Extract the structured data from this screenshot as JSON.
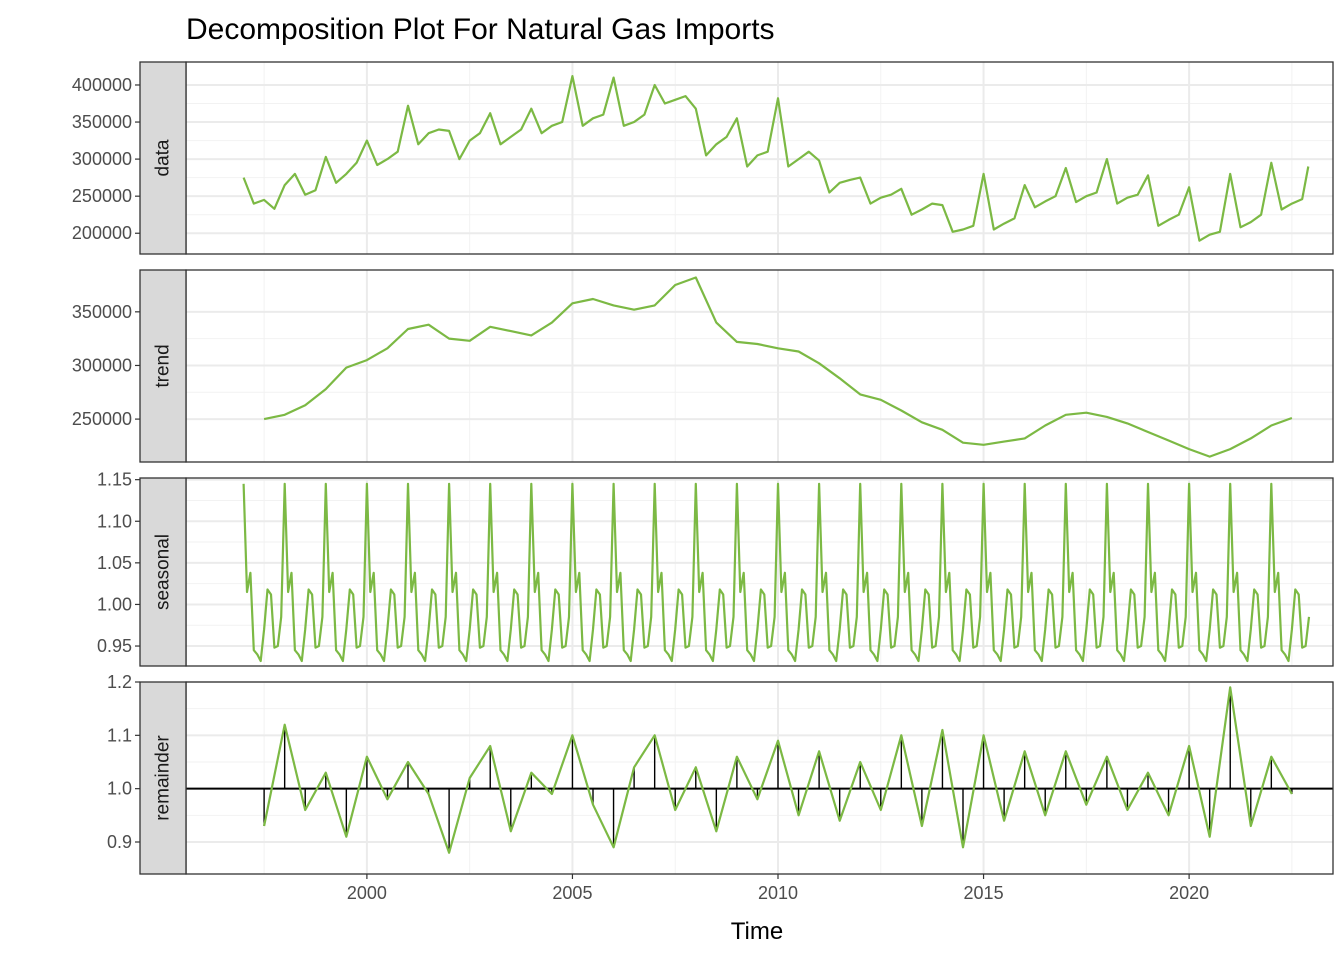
{
  "chart_data": {
    "type": "line",
    "title": "Decomposition Plot For Natural Gas Imports",
    "xlabel": "Time",
    "x_ticks": [
      2000,
      2005,
      2010,
      2015,
      2020
    ],
    "xlim": [
      1995.6,
      2023.5
    ],
    "line_color": "#7cb944",
    "grid": true,
    "panels": [
      {
        "strip": "data",
        "ylim": [
          172000,
          431000
        ],
        "y_ticks": [
          200000,
          250000,
          300000,
          350000,
          400000
        ],
        "tick_labels": [
          "200000",
          "250000",
          "300000",
          "350000",
          "400000"
        ],
        "x": [
          1997.0,
          1997.25,
          1997.5,
          1997.75,
          1998.0,
          1998.25,
          1998.5,
          1998.75,
          1999.0,
          1999.25,
          1999.5,
          1999.75,
          2000.0,
          2000.25,
          2000.5,
          2000.75,
          2001.0,
          2001.25,
          2001.5,
          2001.75,
          2002.0,
          2002.25,
          2002.5,
          2002.75,
          2003.0,
          2003.25,
          2003.5,
          2003.75,
          2004.0,
          2004.25,
          2004.5,
          2004.75,
          2005.0,
          2005.25,
          2005.5,
          2005.75,
          2006.0,
          2006.25,
          2006.5,
          2006.75,
          2007.0,
          2007.25,
          2007.5,
          2007.75,
          2008.0,
          2008.25,
          2008.5,
          2008.75,
          2009.0,
          2009.25,
          2009.5,
          2009.75,
          2010.0,
          2010.25,
          2010.5,
          2010.75,
          2011.0,
          2011.25,
          2011.5,
          2011.75,
          2012.0,
          2012.25,
          2012.5,
          2012.75,
          2013.0,
          2013.25,
          2013.5,
          2013.75,
          2014.0,
          2014.25,
          2014.5,
          2014.75,
          2015.0,
          2015.25,
          2015.5,
          2015.75,
          2016.0,
          2016.25,
          2016.5,
          2016.75,
          2017.0,
          2017.25,
          2017.5,
          2017.75,
          2018.0,
          2018.25,
          2018.5,
          2018.75,
          2019.0,
          2019.25,
          2019.5,
          2019.75,
          2020.0,
          2020.25,
          2020.5,
          2020.75,
          2021.0,
          2021.25,
          2021.5,
          2021.75,
          2022.0,
          2022.25,
          2022.5,
          2022.75,
          2022.9
        ],
        "values": [
          275000,
          240000,
          245000,
          233000,
          265000,
          280000,
          252000,
          258000,
          303000,
          268000,
          280000,
          295000,
          325000,
          292000,
          300000,
          310000,
          372000,
          320000,
          335000,
          340000,
          338000,
          300000,
          325000,
          335000,
          362000,
          320000,
          330000,
          340000,
          368000,
          335000,
          345000,
          350000,
          412000,
          345000,
          355000,
          360000,
          410000,
          345000,
          350000,
          360000,
          400000,
          375000,
          380000,
          385000,
          368000,
          305000,
          320000,
          330000,
          355000,
          290000,
          305000,
          310000,
          382000,
          290000,
          300000,
          310000,
          298000,
          255000,
          268000,
          272000,
          275000,
          240000,
          248000,
          252000,
          260000,
          225000,
          232000,
          240000,
          238000,
          202000,
          205000,
          210000,
          280000,
          205000,
          213000,
          220000,
          265000,
          235000,
          243000,
          250000,
          288000,
          242000,
          250000,
          255000,
          300000,
          240000,
          248000,
          252000,
          278000,
          210000,
          218000,
          225000,
          262000,
          190000,
          198000,
          202000,
          280000,
          208000,
          215000,
          225000,
          295000,
          232000,
          240000,
          246000,
          290000
        ]
      },
      {
        "strip": "trend",
        "ylim": [
          210000,
          389000
        ],
        "y_ticks": [
          250000,
          300000,
          350000
        ],
        "tick_labels": [
          "250000",
          "300000",
          "350000"
        ],
        "x": [
          1997.5,
          1998.0,
          1998.5,
          1999.0,
          1999.5,
          2000.0,
          2000.5,
          2001.0,
          2001.5,
          2002.0,
          2002.5,
          2003.0,
          2003.5,
          2004.0,
          2004.5,
          2005.0,
          2005.5,
          2006.0,
          2006.5,
          2007.0,
          2007.5,
          2008.0,
          2008.5,
          2009.0,
          2009.5,
          2010.0,
          2010.5,
          2011.0,
          2011.5,
          2012.0,
          2012.5,
          2013.0,
          2013.5,
          2014.0,
          2014.5,
          2015.0,
          2015.5,
          2016.0,
          2016.5,
          2017.0,
          2017.5,
          2018.0,
          2018.5,
          2019.0,
          2019.5,
          2020.0,
          2020.5,
          2021.0,
          2021.5,
          2022.0,
          2022.5
        ],
        "values": [
          250000,
          254000,
          263000,
          278000,
          298000,
          305000,
          316000,
          334000,
          338000,
          325000,
          323000,
          336000,
          332000,
          328000,
          340000,
          358000,
          362000,
          356000,
          352000,
          356000,
          375000,
          382000,
          340000,
          322000,
          320000,
          316000,
          313000,
          302000,
          288000,
          273000,
          268000,
          258000,
          247000,
          240000,
          228000,
          226000,
          229000,
          232000,
          244000,
          254000,
          256000,
          252000,
          246000,
          238000,
          230000,
          222000,
          215000,
          222000,
          232000,
          244000,
          251000
        ]
      },
      {
        "strip": "seasonal",
        "ylim": [
          0.926,
          1.152
        ],
        "y_ticks": [
          0.95,
          1.0,
          1.05,
          1.1,
          1.15
        ],
        "tick_labels": [
          "0.95",
          "1.00",
          "1.05",
          "1.10",
          "1.15"
        ],
        "period": 1.0,
        "start": 1997.0,
        "end": 2022.9,
        "monthly_factors": [
          1.145,
          1.015,
          1.038,
          0.945,
          0.94,
          0.932,
          0.97,
          1.018,
          1.012,
          0.948,
          0.95,
          0.985
        ]
      },
      {
        "strip": "remainder",
        "ylim": [
          0.84,
          1.2
        ],
        "y_ticks": [
          0.9,
          1.0,
          1.1,
          1.2
        ],
        "tick_labels": [
          "0.9",
          "1.0",
          "1.1",
          "1.2"
        ],
        "baseline": 1.0,
        "x": [
          1997.5,
          1998.0,
          1998.5,
          1999.0,
          1999.5,
          2000.0,
          2000.5,
          2001.0,
          2001.5,
          2002.0,
          2002.5,
          2003.0,
          2003.5,
          2004.0,
          2004.5,
          2005.0,
          2005.5,
          2006.0,
          2006.5,
          2007.0,
          2007.5,
          2008.0,
          2008.5,
          2009.0,
          2009.5,
          2010.0,
          2010.5,
          2011.0,
          2011.5,
          2012.0,
          2012.5,
          2013.0,
          2013.5,
          2014.0,
          2014.5,
          2015.0,
          2015.5,
          2016.0,
          2016.5,
          2017.0,
          2017.5,
          2018.0,
          2018.5,
          2019.0,
          2019.5,
          2020.0,
          2020.5,
          2021.0,
          2021.5,
          2022.0,
          2022.5
        ],
        "values": [
          0.93,
          1.12,
          0.96,
          1.03,
          0.91,
          1.06,
          0.98,
          1.05,
          0.99,
          0.88,
          1.02,
          1.08,
          0.92,
          1.03,
          0.99,
          1.1,
          0.97,
          0.89,
          1.04,
          1.1,
          0.96,
          1.04,
          0.92,
          1.06,
          0.98,
          1.09,
          0.95,
          1.07,
          0.94,
          1.05,
          0.96,
          1.1,
          0.93,
          1.11,
          0.89,
          1.1,
          0.94,
          1.07,
          0.95,
          1.07,
          0.97,
          1.06,
          0.96,
          1.03,
          0.95,
          1.08,
          0.91,
          1.19,
          0.93,
          1.06,
          0.99
        ]
      }
    ]
  }
}
